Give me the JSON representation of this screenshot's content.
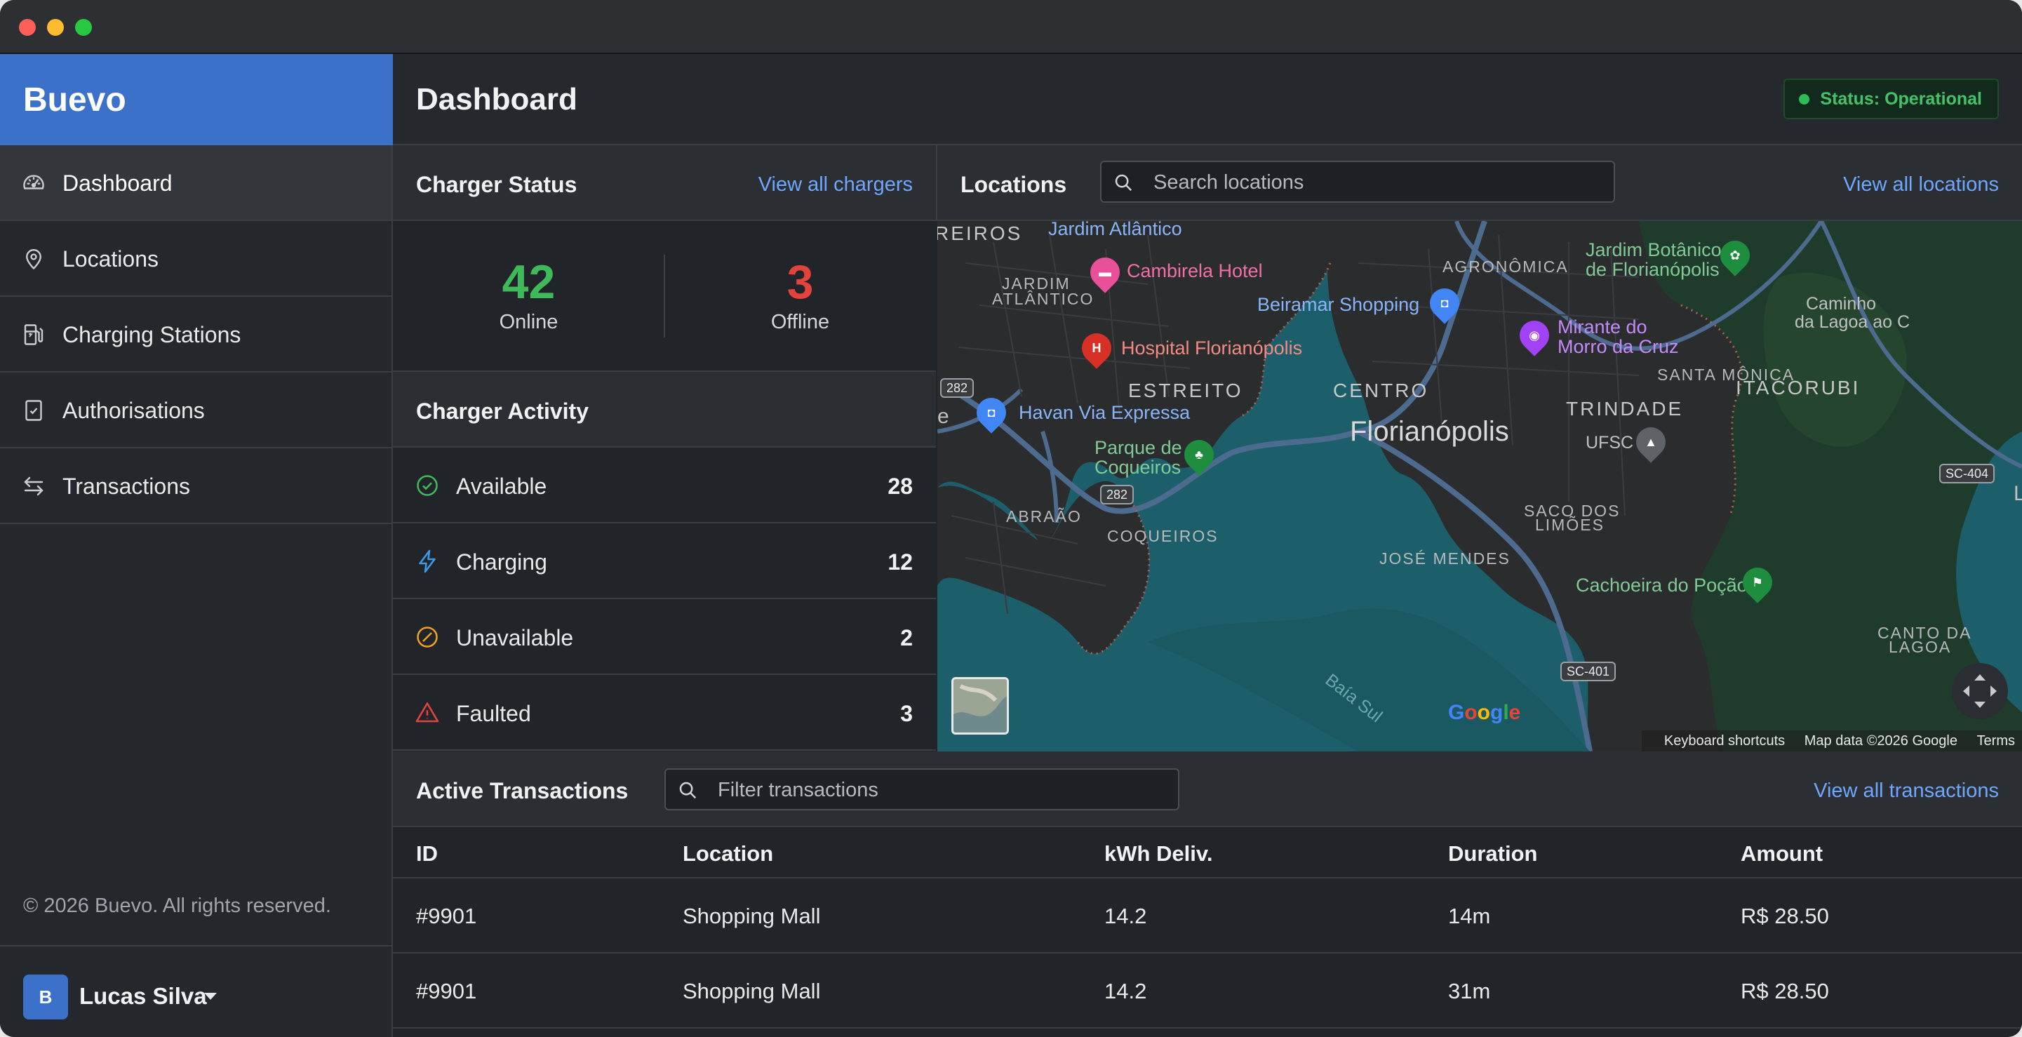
{
  "app": {
    "brand": "Buevo"
  },
  "sidebar": {
    "items": [
      {
        "label": "Dashboard",
        "icon": "gauge-icon",
        "active": true
      },
      {
        "label": "Locations",
        "icon": "map-pin-icon",
        "active": false
      },
      {
        "label": "Charging Stations",
        "icon": "fuel-pump-icon",
        "active": false
      },
      {
        "label": "Authorisations",
        "icon": "clipboard-check-icon",
        "active": false
      },
      {
        "label": "Transactions",
        "icon": "arrows-exchange-icon",
        "active": false
      }
    ],
    "copyright": "© 2026 Buevo. All rights reserved.",
    "user": {
      "initial": "B",
      "name": "Lucas Silva"
    }
  },
  "header": {
    "title": "Dashboard",
    "status": "Status: Operational"
  },
  "charger_status": {
    "title": "Charger Status",
    "link": "View all chargers",
    "online_count": "42",
    "online_label": "Online",
    "offline_count": "3",
    "offline_label": "Offline"
  },
  "charger_activity": {
    "title": "Charger Activity",
    "rows": [
      {
        "label": "Available",
        "value": "28",
        "icon": "check-circle-icon"
      },
      {
        "label": "Charging",
        "value": "12",
        "icon": "lightning-icon"
      },
      {
        "label": "Unavailable",
        "value": "2",
        "icon": "slash-circle-icon"
      },
      {
        "label": "Faulted",
        "value": "3",
        "icon": "warning-triangle-icon"
      }
    ]
  },
  "locations": {
    "title": "Locations",
    "search_placeholder": "Search locations",
    "link": "View all locations",
    "map": {
      "labels": {
        "reiros": "REIROS",
        "jardim_atlantico_poi": "Jardim Atlântico",
        "jardim_atlantico_area_1": "JARDIM",
        "jardim_atlantico_area_2": "ATLÂNTICO",
        "cambirela_hotel": "Cambirela Hotel",
        "beiramar_shopping": "Beiramar Shopping",
        "agronomica": "AGRONÔMICA",
        "jardim_botanico_1": "Jardim Botânico",
        "jardim_botanico_2": "de Florianópolis",
        "caminho_1": "Caminho",
        "caminho_2": "da Lagoa ao C",
        "mirante_1": "Mirante do",
        "mirante_2": "Morro da Cruz",
        "santa_monica": "SANTA MÔNICA",
        "itacorubi": "ITACORUBI",
        "hospital": "Hospital Florianópolis",
        "estreito": "ESTREITO",
        "centro": "CENTRO",
        "trindade": "TRINDADE",
        "havan": "Havan Via Expressa",
        "florianopolis": "Florianópolis",
        "ufsc": "UFSC",
        "parque_1": "Parque de",
        "parque_2": "Coqueiros",
        "abraao": "ABRAÃO",
        "coqueiros": "COQUEIROS",
        "saco_1": "SACO DOS",
        "saco_2": "LIMÕES",
        "jose_mendes": "JOSÉ MENDES",
        "cachoeira": "Cachoeira do Poção",
        "canto_1": "CANTO DA",
        "canto_2": "LAGOA",
        "baia_sul": "Baía Sul",
        "edge_e": "e",
        "edge_l": "L"
      },
      "shields": {
        "s1": "282",
        "s2": "282",
        "s3": "SC-404",
        "s4": "SC-401"
      },
      "footer": {
        "shortcuts": "Keyboard shortcuts",
        "data": "Map data ©2026 Google",
        "terms": "Terms"
      }
    }
  },
  "transactions": {
    "title": "Active Transactions",
    "filter_placeholder": "Filter transactions",
    "link": "View all transactions",
    "columns": [
      "ID",
      "Location",
      "kWh Deliv.",
      "Duration",
      "Amount"
    ],
    "rows": [
      [
        "#9901",
        "Shopping Mall",
        "14.2",
        "14m",
        "R$ 28.50"
      ],
      [
        "#9901",
        "Shopping Mall",
        "14.2",
        "31m",
        "R$ 28.50"
      ]
    ]
  },
  "colors": {
    "brand": "#3b71c8",
    "online": "#3fb95a",
    "offline": "#e2443d",
    "link": "#6ea8fe",
    "available": "#3fb95a",
    "charging": "#3b9ae8",
    "unavailable": "#f0a020",
    "faulted": "#e2443d"
  }
}
